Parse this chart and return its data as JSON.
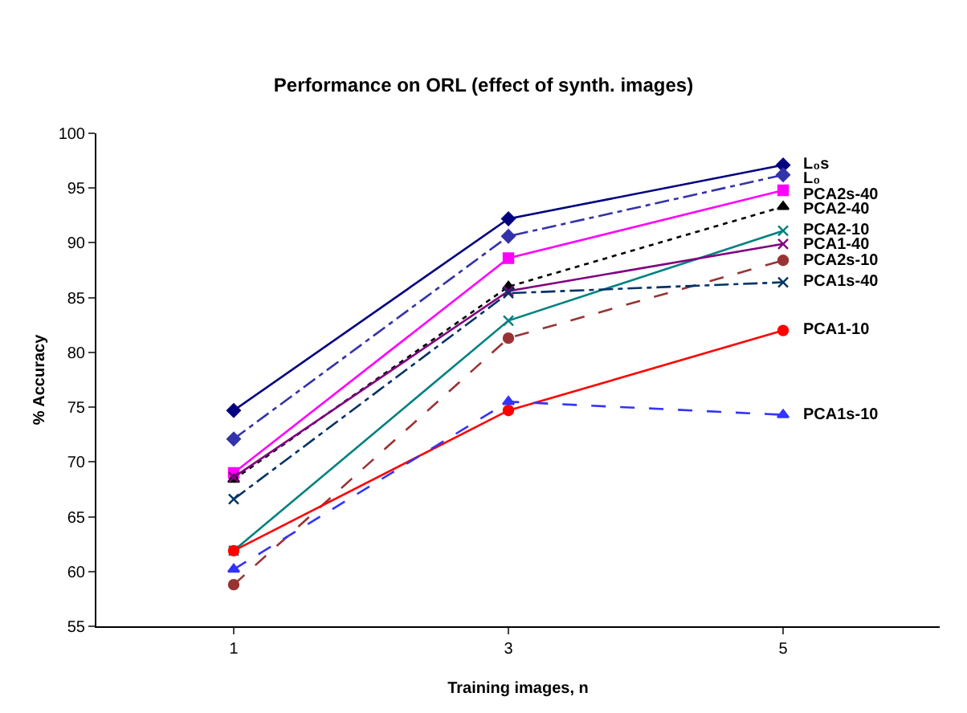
{
  "chart_data": {
    "type": "line",
    "title": "Performance on ORL (effect of synth. images)",
    "xlabel": "Training images, n",
    "ylabel": "% Accuracy",
    "categories": [
      "1",
      "3",
      "5"
    ],
    "ylim": [
      55,
      100
    ],
    "yticks": [
      55,
      60,
      65,
      70,
      75,
      80,
      85,
      90,
      95,
      100
    ],
    "legend": false,
    "series": [
      {
        "name": "L₀s",
        "color": "#000080",
        "values": [
          74.7,
          92.2,
          97.1
        ],
        "marker": "diamond",
        "line_style": "solid"
      },
      {
        "name": "L₀",
        "color": "#3333aa",
        "values": [
          72.1,
          90.6,
          96.2
        ],
        "marker": "diamond",
        "line_style": "dashdot"
      },
      {
        "name": "PCA2s-40",
        "color": "#ff00ff",
        "values": [
          69.0,
          88.6,
          94.8
        ],
        "marker": "square",
        "line_style": "solid"
      },
      {
        "name": "PCA2-40",
        "color": "#000000",
        "values": [
          68.4,
          86.0,
          93.3
        ],
        "marker": "triangle",
        "line_style": "dotted"
      },
      {
        "name": "PCA2-10",
        "color": "#008080",
        "values": [
          61.9,
          82.9,
          91.1
        ],
        "marker": "cross",
        "line_style": "solid"
      },
      {
        "name": "PCA1-40",
        "color": "#800080",
        "values": [
          68.6,
          85.6,
          89.9
        ],
        "marker": "cross",
        "line_style": "solid"
      },
      {
        "name": "PCA2s-10",
        "color": "#993333",
        "values": [
          58.8,
          81.3,
          88.4
        ],
        "marker": "circle",
        "line_style": "dashed"
      },
      {
        "name": "PCA1s-40",
        "color": "#003366",
        "values": [
          66.6,
          85.4,
          86.4
        ],
        "marker": "cross",
        "line_style": "dashdot"
      },
      {
        "name": "PCA1-10",
        "color": "#ff0000",
        "values": [
          61.9,
          74.7,
          82.0
        ],
        "marker": "circle",
        "line_style": "solid"
      },
      {
        "name": "PCA1s-10",
        "color": "#3333ff",
        "values": [
          60.2,
          75.5,
          74.3
        ],
        "marker": "triangle",
        "line_style": "dashed"
      }
    ]
  }
}
